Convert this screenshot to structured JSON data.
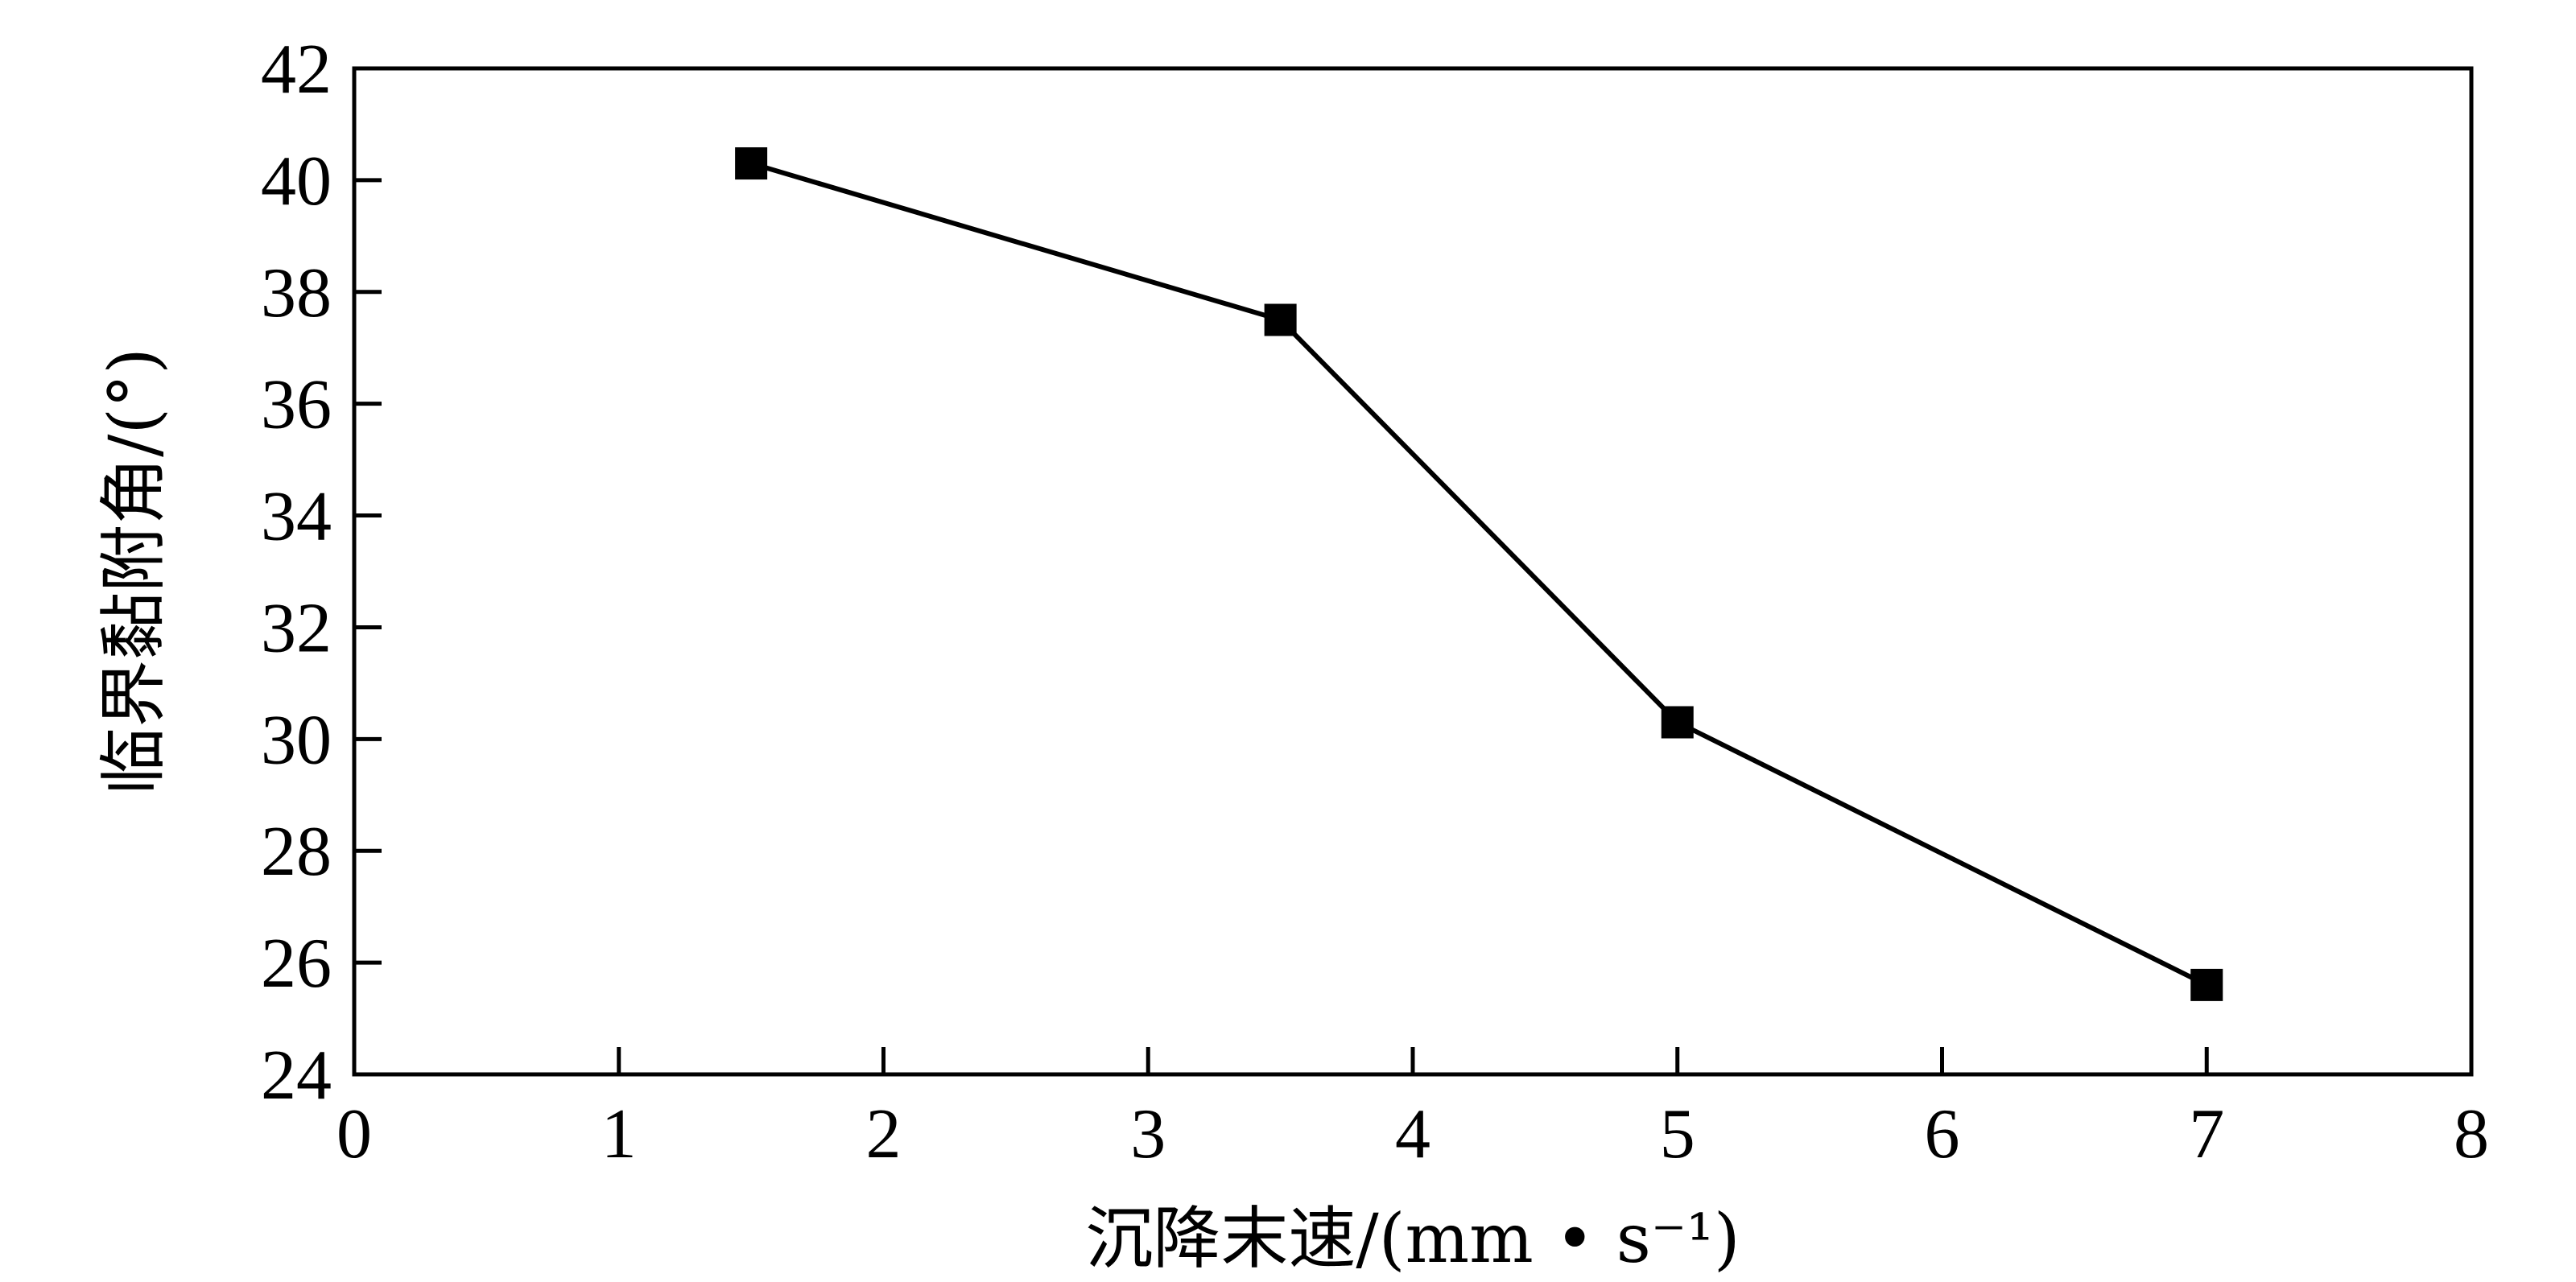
{
  "chart_data": {
    "type": "line",
    "xlabel": "沉降末速/(mm • s⁻¹)",
    "ylabel": "临界黏附角/(°)",
    "xlim": [
      0,
      8
    ],
    "ylim": [
      24,
      42
    ],
    "x_ticks": [
      "0",
      "1",
      "2",
      "3",
      "4",
      "5",
      "6",
      "7",
      "8"
    ],
    "y_ticks": [
      "24",
      "26",
      "28",
      "30",
      "32",
      "34",
      "36",
      "38",
      "40",
      "42"
    ],
    "grid": false,
    "series": [
      {
        "x": [
          1.5,
          3.5,
          5,
          7
        ],
        "y": [
          40.3,
          37.5,
          30.3,
          25.6
        ],
        "marker": "square",
        "color": "#000000"
      }
    ]
  }
}
